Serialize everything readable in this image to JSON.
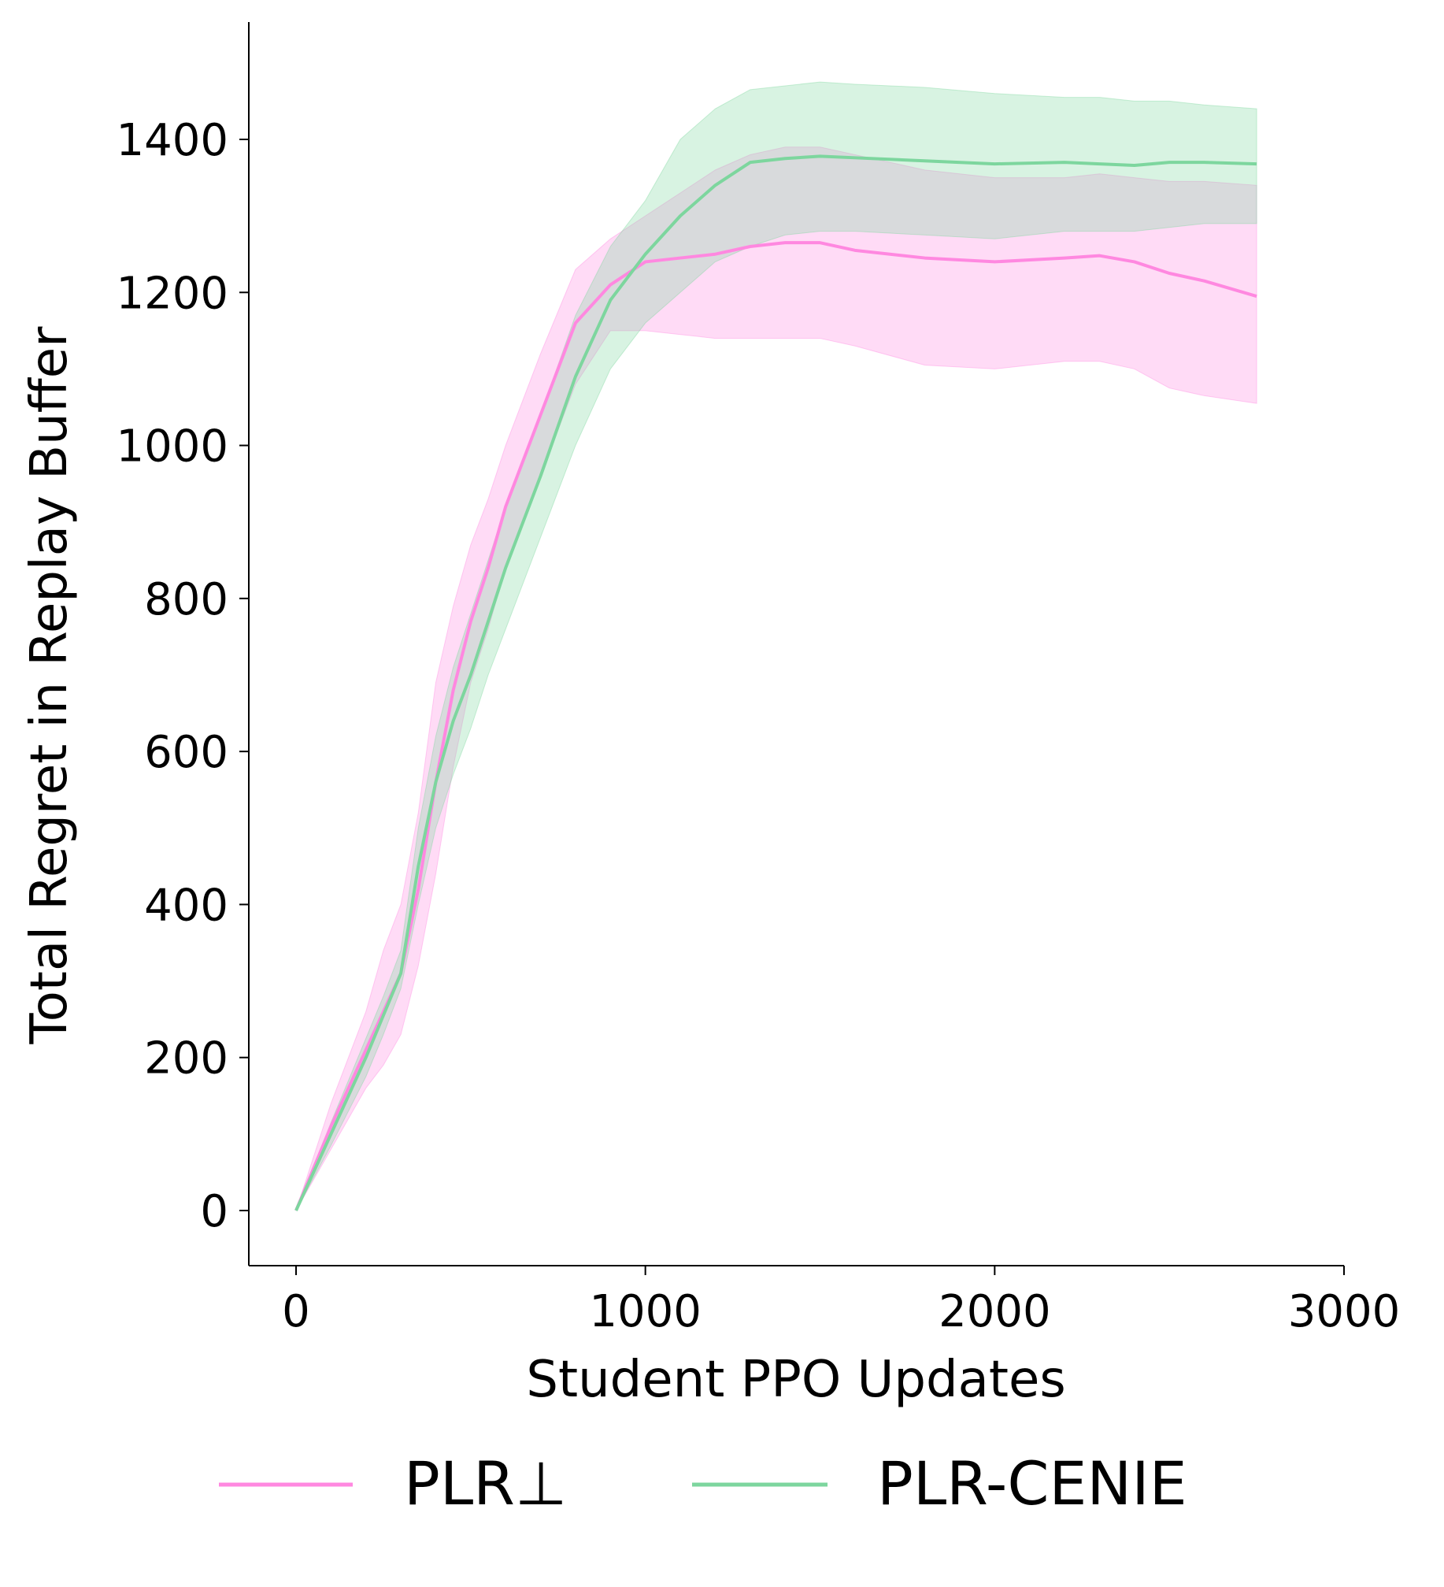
{
  "chart_data": {
    "type": "line",
    "title": "",
    "xlabel": "Student PPO Updates",
    "ylabel": "Total Regret in Replay Buffer",
    "xlim": [
      -135,
      3000
    ],
    "ylim": [
      -75,
      1555
    ],
    "xticks": [
      0,
      1000,
      2000,
      3000
    ],
    "yticks": [
      0,
      200,
      400,
      600,
      800,
      1000,
      1200,
      1400
    ],
    "grid": false,
    "legend_position": "bottom",
    "band_opacity": 0.3,
    "series": [
      {
        "name": "PLR⊥",
        "color": "#ff88e0",
        "x": [
          0,
          100,
          200,
          250,
          300,
          350,
          400,
          450,
          500,
          550,
          600,
          700,
          800,
          900,
          1000,
          1100,
          1200,
          1300,
          1400,
          1500,
          1600,
          1800,
          2000,
          2200,
          2300,
          2400,
          2500,
          2600,
          2750
        ],
        "mean": [
          0,
          110,
          210,
          260,
          310,
          420,
          560,
          680,
          770,
          840,
          920,
          1040,
          1160,
          1210,
          1240,
          1245,
          1250,
          1260,
          1265,
          1265,
          1255,
          1245,
          1240,
          1245,
          1248,
          1240,
          1225,
          1215,
          1195
        ],
        "lower": [
          0,
          80,
          160,
          190,
          230,
          320,
          440,
          580,
          690,
          760,
          840,
          960,
          1080,
          1150,
          1150,
          1145,
          1140,
          1140,
          1140,
          1140,
          1130,
          1105,
          1100,
          1110,
          1110,
          1100,
          1075,
          1065,
          1055
        ],
        "upper": [
          0,
          140,
          260,
          340,
          400,
          520,
          690,
          790,
          870,
          930,
          1000,
          1120,
          1230,
          1270,
          1300,
          1330,
          1360,
          1380,
          1390,
          1390,
          1380,
          1360,
          1350,
          1350,
          1355,
          1350,
          1345,
          1345,
          1340
        ]
      },
      {
        "name": "PLR-CENIE",
        "color": "#7dd69e",
        "x": [
          0,
          100,
          200,
          250,
          300,
          350,
          400,
          450,
          500,
          550,
          600,
          700,
          800,
          900,
          1000,
          1100,
          1200,
          1300,
          1400,
          1500,
          1600,
          1800,
          2000,
          2200,
          2300,
          2400,
          2500,
          2600,
          2750
        ],
        "mean": [
          0,
          100,
          200,
          255,
          310,
          450,
          560,
          640,
          700,
          770,
          840,
          960,
          1090,
          1190,
          1250,
          1300,
          1340,
          1370,
          1375,
          1378,
          1376,
          1372,
          1368,
          1370,
          1368,
          1366,
          1370,
          1370,
          1368
        ],
        "lower": [
          0,
          85,
          175,
          230,
          290,
          400,
          500,
          570,
          630,
          700,
          760,
          880,
          1000,
          1100,
          1160,
          1200,
          1240,
          1260,
          1275,
          1280,
          1280,
          1275,
          1270,
          1280,
          1280,
          1280,
          1285,
          1290,
          1290
        ],
        "upper": [
          0,
          115,
          225,
          280,
          340,
          500,
          620,
          710,
          780,
          850,
          920,
          1040,
          1170,
          1260,
          1320,
          1400,
          1440,
          1465,
          1470,
          1475,
          1472,
          1468,
          1460,
          1455,
          1455,
          1450,
          1450,
          1445,
          1440
        ]
      }
    ]
  }
}
